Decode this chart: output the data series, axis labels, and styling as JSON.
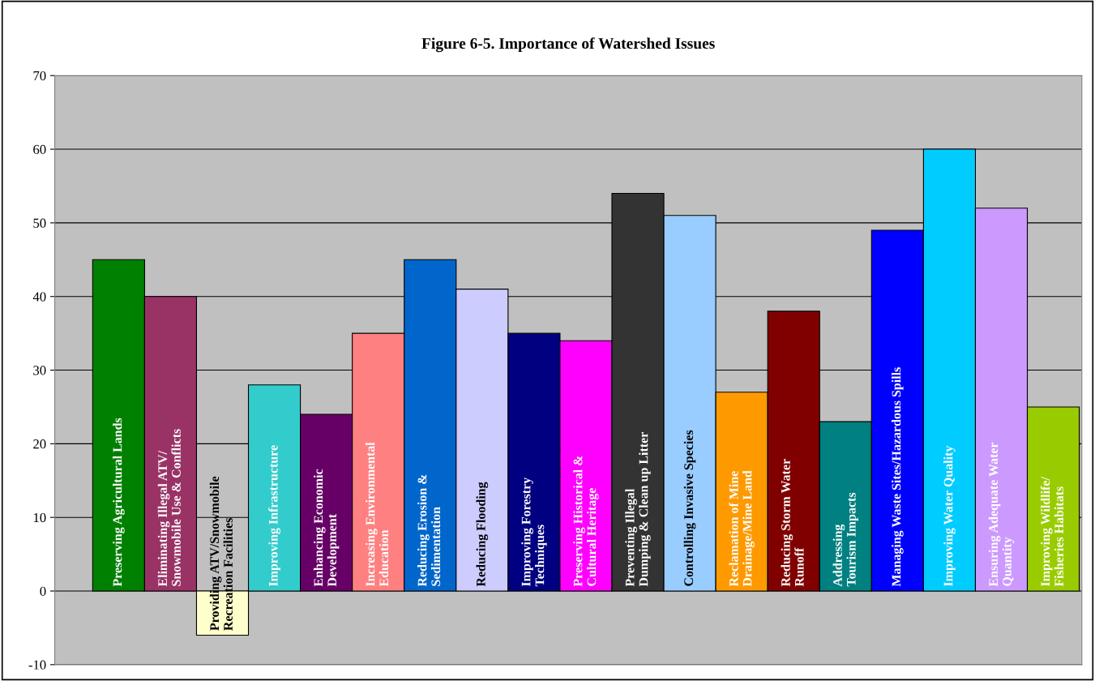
{
  "chart_data": {
    "type": "bar",
    "title": "Figure 6-5. Importance of Watershed Issues",
    "categories": [
      "Preserving Agricultural Lands",
      "Eliminating Illegal ATV/\nSnowmobile Use & Conflicts",
      "Providing ATV/Snowmobile\nRecreation Facilities",
      "Improving Infrastructure",
      "Enhancing Economic\nDevelopment",
      "Increasing Environmental\nEducation",
      "Reducing Erosion &\nSedimentation",
      "Reducing Flooding",
      "Improving Forestry\nTechniques",
      "Preserving Historical &\nCultural Heritage",
      "Preventing Illegal\nDumping & Clean up Litter",
      "Controlling Invasive Species",
      "Reclamation of Mine\nDrainage/Mine Land",
      "Reducing Storm Water\nRunoff",
      "Addressing\nTourism Impacts",
      "Managing Waste Sites/Hazardous Spills",
      "Improving Water Quality",
      "Ensuring Adequate Water\nQuantity",
      "Improving Wildlife/\nFisheries Habitats"
    ],
    "values": [
      45,
      40,
      -6,
      28,
      24,
      35,
      45,
      41,
      35,
      34,
      54,
      51,
      27,
      38,
      23,
      49,
      60,
      52,
      25
    ],
    "colors": [
      "#008000",
      "#993366",
      "#ffffcc",
      "#33cccc",
      "#660066",
      "#ff8080",
      "#0066cc",
      "#ccccff",
      "#000080",
      "#ff00ff",
      "#333333",
      "#99ccff",
      "#ff9900",
      "#800000",
      "#008080",
      "#0000ff",
      "#00ccff",
      "#cc99ff",
      "#99cc00"
    ],
    "ylim": [
      -10,
      70
    ],
    "yticks": [
      -10,
      0,
      10,
      20,
      30,
      40,
      50,
      60,
      70
    ],
    "grid": "y"
  }
}
